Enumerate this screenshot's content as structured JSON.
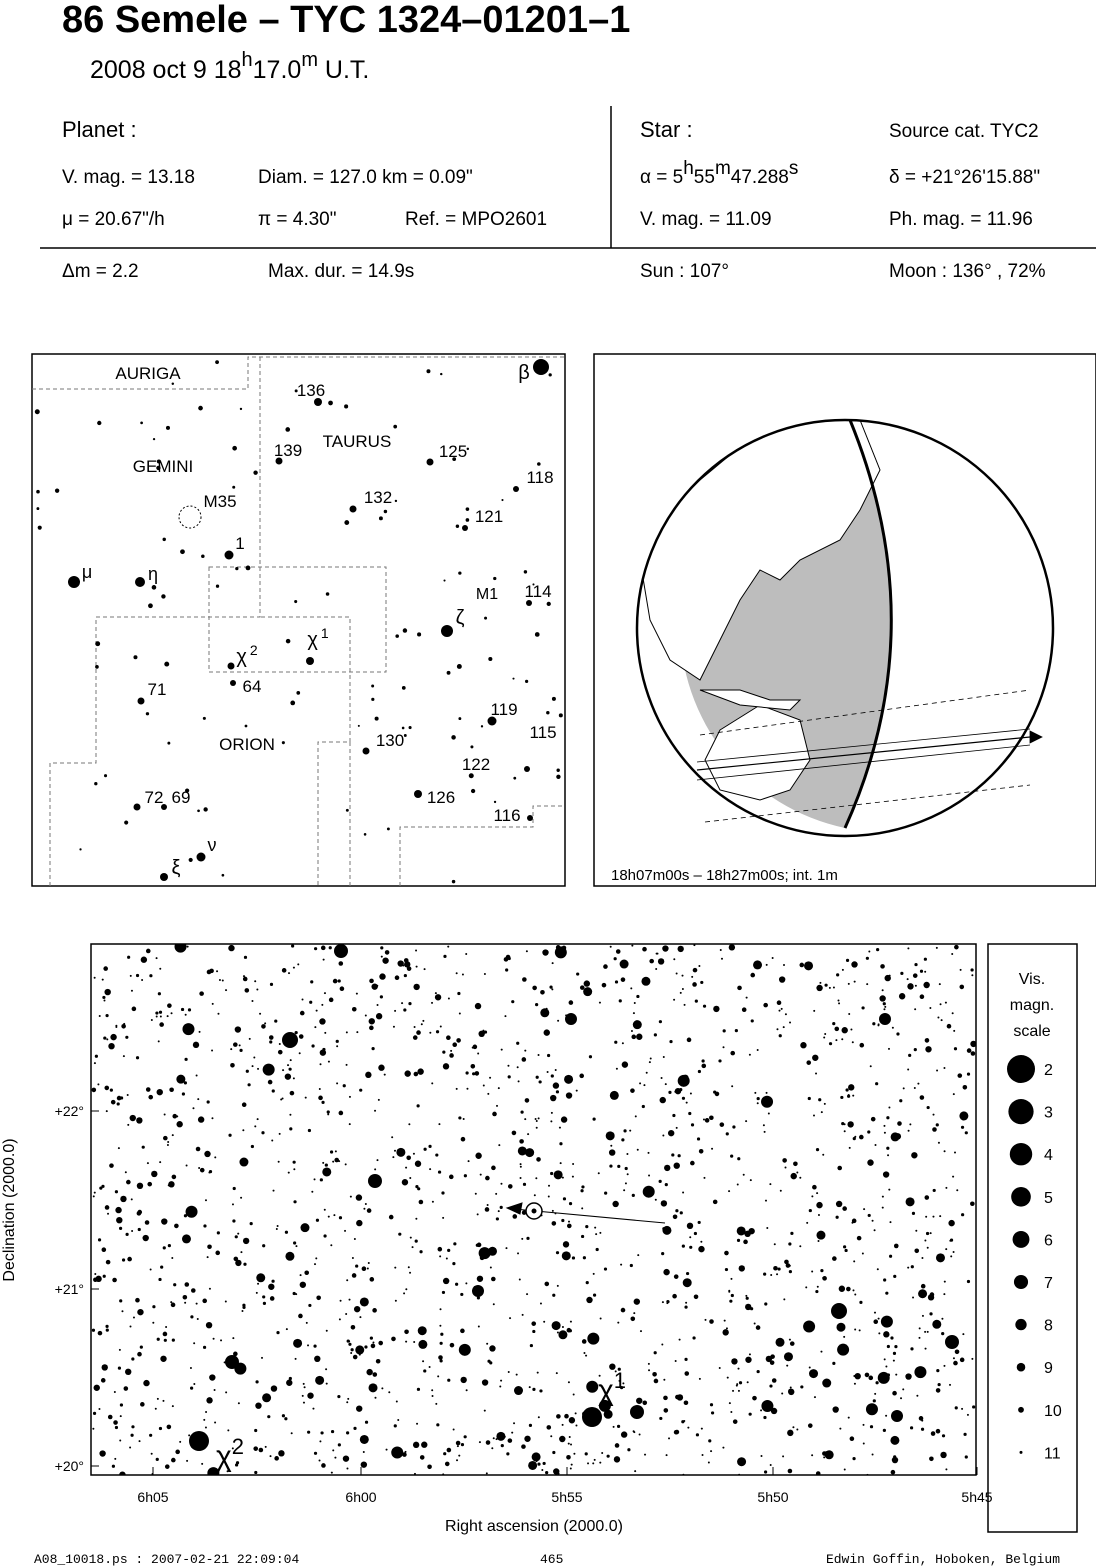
{
  "header": {
    "title": "86 Semele  –  TYC 1324–01201–1",
    "date": "2008 oct  9  18",
    "hour_unit": "h",
    "minutes": "17.0",
    "minute_unit": "m",
    "time_scale": " U.T."
  },
  "planet": {
    "heading": "Planet :",
    "vmag": "V. mag. = 13.18",
    "diam": "Diam. = 127.0 km = 0.09\"",
    "mu": "μ =  20.67\"/h",
    "pi": "π =  4.30\"",
    "ref": "Ref. = MPO2601"
  },
  "star": {
    "heading": "Star :",
    "source": "Source cat.  TYC2",
    "alpha_hours": "α =  5",
    "alpha_h": "h",
    "alpha_minutes": "55",
    "alpha_m": "m",
    "alpha_seconds": "47.288",
    "alpha_s": "s",
    "delta": "δ = +21°26'15.88\"",
    "vmag": "V. mag. = 11.09",
    "phmag": "Ph. mag. = 11.96"
  },
  "event": {
    "dm": "Δm = 2.2",
    "maxdur": "Max. dur. = 14.9s",
    "sun": "Sun : 107°",
    "moon": "Moon : 136° , 72%"
  },
  "finder": {
    "labels": [
      {
        "text": "AURIGA"
      },
      {
        "text": "GEMINI"
      },
      {
        "text": "TAURUS"
      },
      {
        "text": "ORION"
      },
      {
        "text": "M35"
      },
      {
        "text": "M1"
      },
      {
        "text": "136"
      },
      {
        "text": "139"
      },
      {
        "text": "125"
      },
      {
        "text": "132"
      },
      {
        "text": "118"
      },
      {
        "text": "121"
      },
      {
        "text": "1"
      },
      {
        "text": "114"
      },
      {
        "text": "71"
      },
      {
        "text": "64"
      },
      {
        "text": "130"
      },
      {
        "text": "119"
      },
      {
        "text": "115"
      },
      {
        "text": "122"
      },
      {
        "text": "72"
      },
      {
        "text": "69"
      },
      {
        "text": "126"
      },
      {
        "text": "116"
      },
      {
        "text": "β"
      },
      {
        "text": "μ"
      },
      {
        "text": "η"
      },
      {
        "text": "ζ"
      },
      {
        "text": "χ",
        "sup": "2"
      },
      {
        "text": "χ",
        "sup": "1"
      },
      {
        "text": "ν"
      },
      {
        "text": "ξ"
      }
    ]
  },
  "globe": {
    "caption": "18h07m00s – 18h27m00s; int.  1m"
  },
  "field": {
    "yticks": [
      "+22°",
      "+21°",
      "+20°"
    ],
    "xticks": [
      "6h05",
      "6h00",
      "5h55",
      "5h50",
      "5h45"
    ],
    "ylabel": "Declination (2000.0)",
    "xlabel": "Right ascension (2000.0)",
    "star_labels": [
      {
        "text": "χ",
        "sup": "1"
      },
      {
        "text": "χ",
        "sup": "2"
      }
    ]
  },
  "legend": {
    "title": [
      "Vis.",
      "magn.",
      "scale"
    ],
    "magnitudes": [
      2,
      3,
      4,
      5,
      6,
      7,
      8,
      9,
      10,
      11
    ]
  },
  "footer": {
    "file": "A08_10018.ps : 2007-02-21 22:09:04",
    "page": "465",
    "author": "Edwin Goffin, Hoboken, Belgium"
  }
}
